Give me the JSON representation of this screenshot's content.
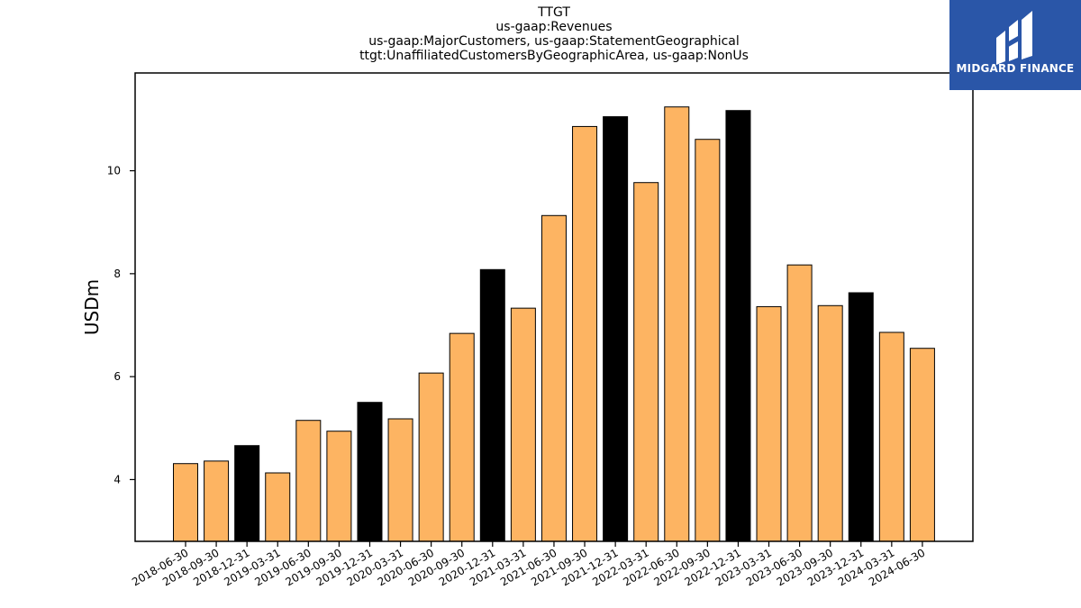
{
  "chart_data": {
    "type": "bar",
    "title": [
      "TTGT",
      "us-gaap:Revenues",
      "us-gaap:MajorCustomers, us-gaap:StatementGeographical",
      "ttgt:UnaffiliatedCustomersByGeographicArea, us-gaap:NonUs"
    ],
    "xlabel": "",
    "ylabel": "USDm",
    "ylim": [
      2.8,
      11.9
    ],
    "yticks": [
      4,
      6,
      8,
      10
    ],
    "grid": false,
    "legend": "none",
    "categories": [
      "2018-06-30",
      "2018-09-30",
      "2018-12-31",
      "2019-03-31",
      "2019-06-30",
      "2019-09-30",
      "2019-12-31",
      "2020-03-31",
      "2020-06-30",
      "2020-09-30",
      "2020-12-31",
      "2021-03-31",
      "2021-06-30",
      "2021-09-30",
      "2021-12-31",
      "2022-03-31",
      "2022-06-30",
      "2022-09-30",
      "2022-12-31",
      "2023-03-31",
      "2023-06-30",
      "2023-09-30",
      "2023-12-31",
      "2024-03-31",
      "2024-06-30"
    ],
    "values": [
      4.31,
      4.36,
      4.66,
      4.13,
      5.15,
      4.94,
      5.5,
      5.18,
      6.07,
      6.84,
      8.08,
      7.33,
      9.13,
      10.86,
      11.05,
      9.77,
      11.24,
      10.61,
      11.17,
      7.36,
      8.17,
      7.38,
      7.63,
      6.86,
      6.55
    ],
    "colors": {
      "quarter": "#fdb462",
      "year_end": "#000000",
      "edge": "#000000"
    },
    "year_end_categories": [
      "2018-12-31",
      "2019-12-31",
      "2020-12-31",
      "2021-12-31",
      "2022-12-31",
      "2023-12-31"
    ]
  },
  "logo": {
    "text": "MIDGARD FINANCE",
    "background": "#2a56a8"
  }
}
